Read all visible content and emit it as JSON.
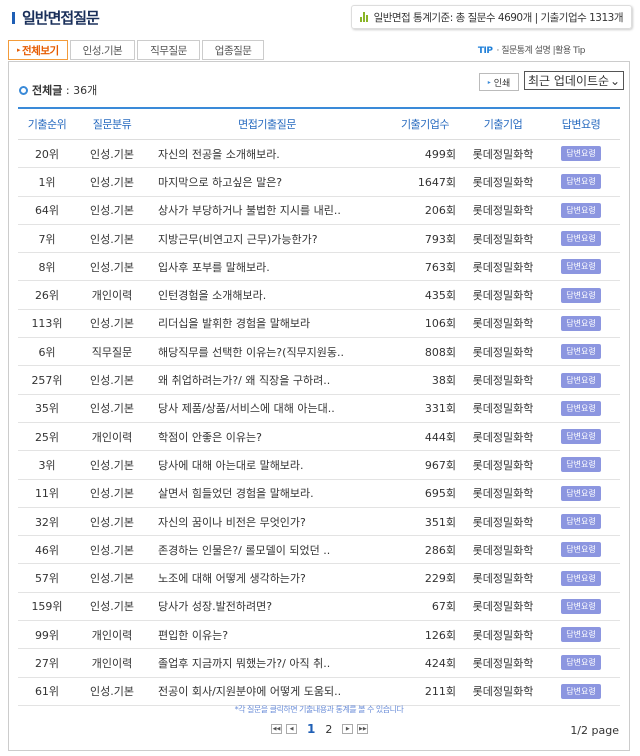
{
  "header": {
    "title": "일반면접질문",
    "stats": "일반면접 통계기준: 총 질문수 4690개 | 기출기업수 1313개"
  },
  "tabs": [
    "전체보기",
    "인성.기본",
    "직무질문",
    "업종질문"
  ],
  "tip": {
    "label": "TIP",
    "text": "· 질문통계 설명 |활용 Tip"
  },
  "toolbar": {
    "total_label": "전체글",
    "total_value": ": 36개",
    "print": "인쇄",
    "sort": "최근 업데이트순"
  },
  "table": {
    "headers": [
      "기출순위",
      "질문분류",
      "면접기출질문",
      "기출기업수",
      "기출기업",
      "답변요령"
    ],
    "answer_label": "답변요령",
    "rows": [
      [
        "20위",
        "인성.기본",
        "자신의 전공을 소개해보라.",
        "499회",
        "롯데정밀화학"
      ],
      [
        "1위",
        "인성.기본",
        "마지막으로 하고싶은 말은?",
        "1647회",
        "롯데정밀화학"
      ],
      [
        "64위",
        "인성.기본",
        "상사가 부당하거나 불법한 지시를 내린..",
        "206회",
        "롯데정밀화학"
      ],
      [
        "7위",
        "인성.기본",
        "지방근무(비연고지 근무)가능한가?",
        "793회",
        "롯데정밀화학"
      ],
      [
        "8위",
        "인성.기본",
        "입사후 포부를 말해보라.",
        "763회",
        "롯데정밀화학"
      ],
      [
        "26위",
        "개인이력",
        "인턴경험을 소개해보라.",
        "435회",
        "롯데정밀화학"
      ],
      [
        "113위",
        "인성.기본",
        "리더십을 발휘한 경험을 말해보라",
        "106회",
        "롯데정밀화학"
      ],
      [
        "6위",
        "직무질문",
        "해당직무를 선택한 이유는?(직무지원동..",
        "808회",
        "롯데정밀화학"
      ],
      [
        "257위",
        "인성.기본",
        "왜 취업하려는가?/ 왜 직장을 구하려..",
        "38회",
        "롯데정밀화학"
      ],
      [
        "35위",
        "인성.기본",
        "당사 제품/상품/서비스에 대해 아는대..",
        "331회",
        "롯데정밀화학"
      ],
      [
        "25위",
        "개인이력",
        "학점이 안좋은 이유는?",
        "444회",
        "롯데정밀화학"
      ],
      [
        "3위",
        "인성.기본",
        "당사에 대해 아는대로 말해보라.",
        "967회",
        "롯데정밀화학"
      ],
      [
        "11위",
        "인성.기본",
        "살면서 힘들었던 경험을 말해보라.",
        "695회",
        "롯데정밀화학"
      ],
      [
        "32위",
        "인성.기본",
        "자신의 꿈이나 비전은 무엇인가?",
        "351회",
        "롯데정밀화학"
      ],
      [
        "46위",
        "인성.기본",
        "존경하는 인물은?/ 롤모델이 되었던 ..",
        "286회",
        "롯데정밀화학"
      ],
      [
        "57위",
        "인성.기본",
        "노조에 대해 어떻게 생각하는가?",
        "229회",
        "롯데정밀화학"
      ],
      [
        "159위",
        "인성.기본",
        "당사가 성장.발전하려면?",
        "67회",
        "롯데정밀화학"
      ],
      [
        "99위",
        "개인이력",
        "편입한 이유는?",
        "126회",
        "롯데정밀화학"
      ],
      [
        "27위",
        "개인이력",
        "졸업후 지금까지 뭐했는가?/ 아직 취..",
        "424회",
        "롯데정밀화학"
      ],
      [
        "61위",
        "인성.기본",
        "전공이 회사/지원분야에 어떻게 도움되..",
        "211회",
        "롯데정밀화학"
      ]
    ]
  },
  "note": "*각 질문을 클릭하면 기출내용과 통계를 볼 수 있습니다",
  "pagination": {
    "pages": [
      "1",
      "2"
    ],
    "current": "1",
    "info": "1/2 page"
  },
  "colors": {
    "accent": "#3a8ad8",
    "active_tab": "#e65b00",
    "answer_button": "#8c96e0"
  }
}
